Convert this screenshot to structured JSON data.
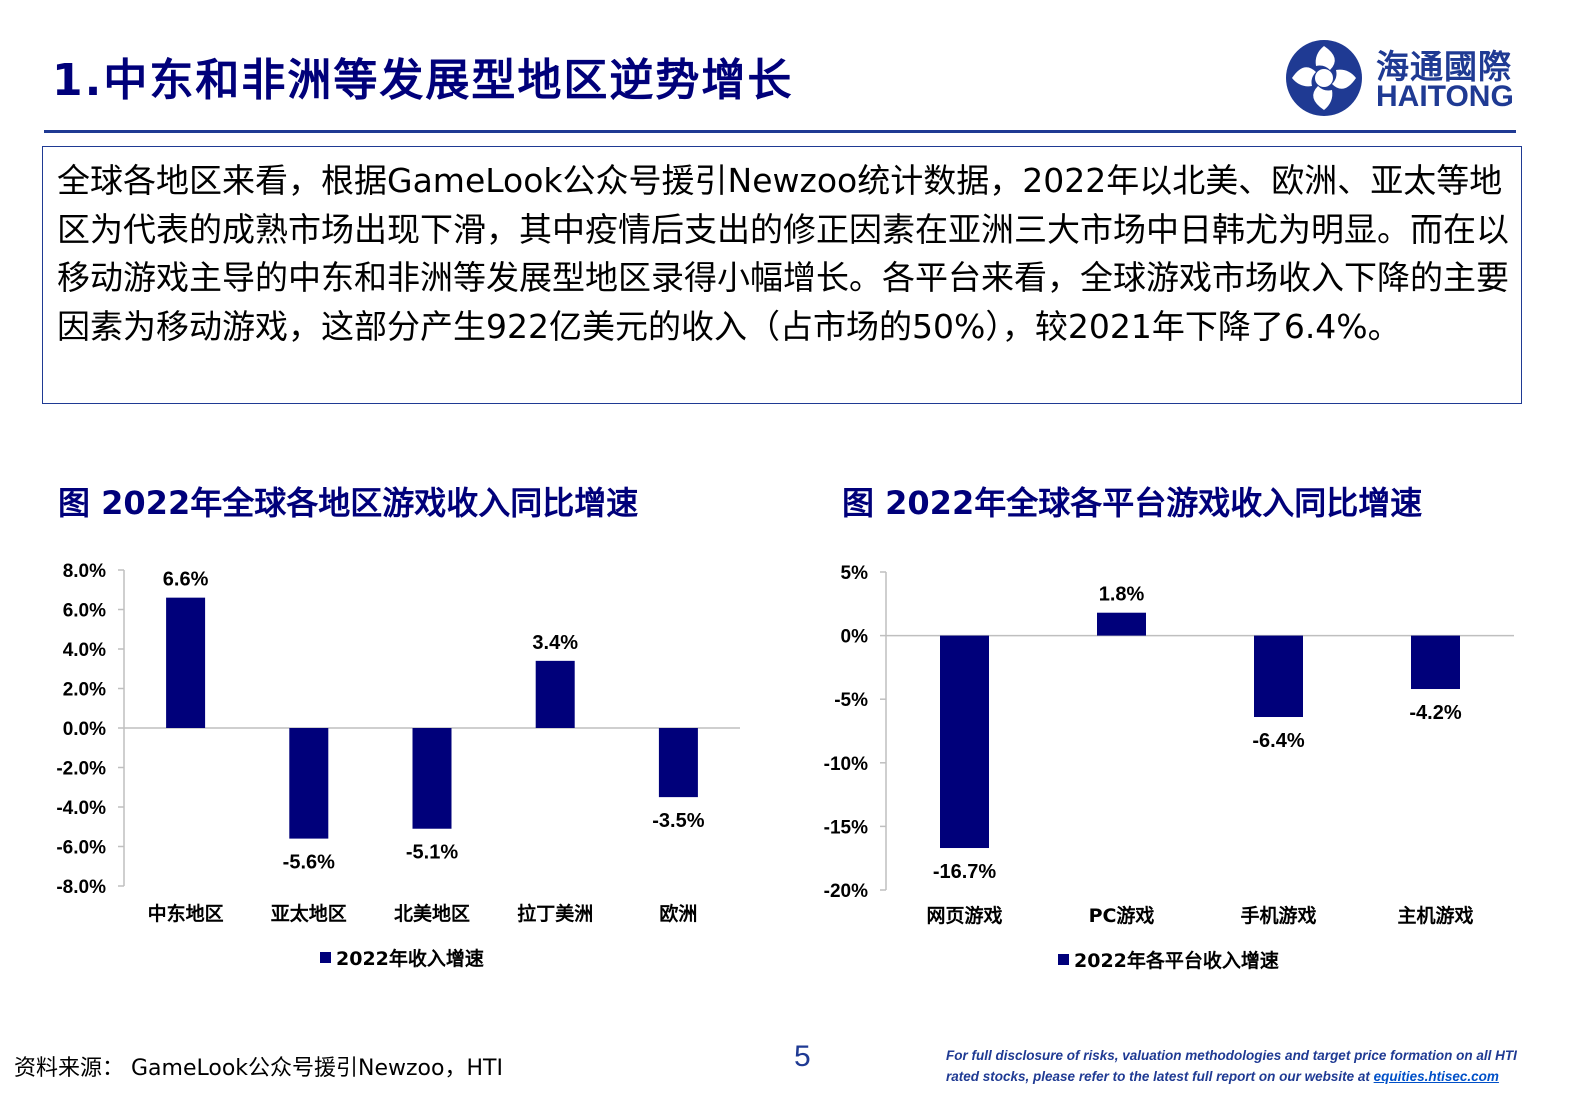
{
  "header": {
    "title": "1.中东和非洲等发展型地区逆势增长",
    "logo_cn": "海通國際",
    "logo_en": "HAITONG"
  },
  "summary": {
    "text": "全球各地区来看，根据GameLook公众号援引Newzoo统计数据，2022年以北美、欧洲、亚太等地区为代表的成熟市场出现下滑，其中疫情后支出的修正因素在亚洲三大市场中日韩尤为明显。而在以移动游戏主导的中东和非洲等发展型地区录得小幅增长。各平台来看，全球游戏市场收入下降的主要因素为移动游戏，这部分产生922亿美元的收入（占市场的50%），较2021年下降了6.4%。"
  },
  "charts": {
    "left_title": "图 2022年全球各地区游戏收入同比增速",
    "right_title": "图 2022年全球各平台游戏收入同比增速"
  },
  "chart_data": [
    {
      "type": "bar",
      "title": "图 2022年全球各地区游戏收入同比增速",
      "categories": [
        "中东地区",
        "亚太地区",
        "北美地区",
        "拉丁美洲",
        "欧洲"
      ],
      "series": [
        {
          "name": "2022年收入增速",
          "values": [
            6.6,
            -5.6,
            -5.1,
            3.4,
            -3.5
          ]
        }
      ],
      "data_labels": [
        "6.6%",
        "-5.6%",
        "-5.1%",
        "3.4%",
        "-3.5%"
      ],
      "y_ticks": [
        "8.0%",
        "6.0%",
        "4.0%",
        "2.0%",
        "0.0%",
        "-2.0%",
        "-4.0%",
        "-6.0%",
        "-8.0%"
      ],
      "ylim": [
        -8,
        8
      ],
      "legend": "bottom",
      "grid": false,
      "color": "#00007a"
    },
    {
      "type": "bar",
      "title": "图 2022年全球各平台游戏收入同比增速",
      "categories": [
        "网页游戏",
        "PC游戏",
        "手机游戏",
        "主机游戏"
      ],
      "series": [
        {
          "name": "2022年各平台收入增速",
          "values": [
            -16.7,
            1.8,
            -6.4,
            -4.2
          ]
        }
      ],
      "data_labels": [
        "-16.7%",
        "1.8%",
        "-6.4%",
        "-4.2%"
      ],
      "y_ticks": [
        "5%",
        "0%",
        "-5%",
        "-10%",
        "-15%",
        "-20%"
      ],
      "ylim": [
        -20,
        5
      ],
      "legend": "bottom",
      "grid": false,
      "color": "#00007a"
    }
  ],
  "footer": {
    "source": "资料来源： GameLook公众号援引Newzoo，HTI",
    "page_number": "5",
    "disclaimer_line1": "For full disclosure of risks, valuation methodologies and target price formation on all HTI",
    "disclaimer_line2": "rated stocks, please refer to the latest full report on our website at",
    "disclaimer_link": "equities.htisec.com"
  }
}
